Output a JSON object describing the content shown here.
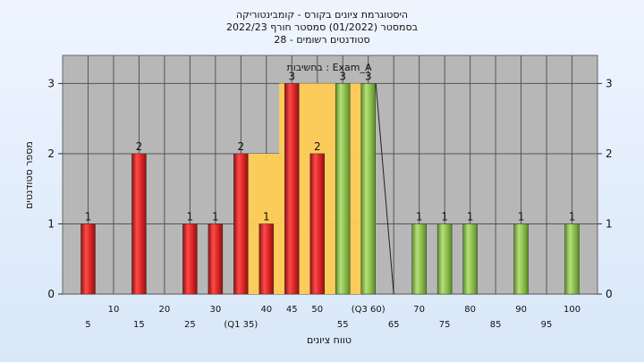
{
  "title_lines": [
    "היסטוגרמת ציונים בקורס - קומבינטוריקה",
    "בסמסטר  (01/2022)  סמסטר חורף 2022/23",
    "סטודנטים רשומים - 28"
  ],
  "chart_data": {
    "type": "bar",
    "legend_label": "בחשיבות : Exam_A",
    "xlabel": "טווח ציונים",
    "ylabel": "מספר סטודנטים",
    "ylim": [
      0,
      3.4
    ],
    "xlim": [
      0,
      105
    ],
    "y_ticks": [
      "0",
      "1",
      "2",
      "3"
    ],
    "x_tick_labels_upper": [
      "10",
      "20",
      "30",
      "40",
      "45",
      "50",
      "(Q3 60)",
      "70",
      "80",
      "90",
      "100"
    ],
    "x_tick_labels_lower": [
      "5",
      "15",
      "25",
      "(Q1 35)",
      "55",
      "65",
      "75",
      "85",
      "95"
    ],
    "x_ticks_upper_pos": [
      10,
      20,
      30,
      40,
      45,
      50,
      60,
      70,
      80,
      90,
      100
    ],
    "x_ticks_lower_pos": [
      5,
      15,
      25,
      35,
      55,
      65,
      75,
      85,
      95
    ],
    "bars": [
      {
        "x": 5,
        "value": 1,
        "color": "red",
        "label": "1"
      },
      {
        "x": 15,
        "value": 2,
        "color": "red",
        "label": "2"
      },
      {
        "x": 25,
        "value": 1,
        "color": "red",
        "label": "1"
      },
      {
        "x": 30,
        "value": 1,
        "color": "red",
        "label": "1"
      },
      {
        "x": 35,
        "value": 2,
        "color": "red",
        "label": "2"
      },
      {
        "x": 40,
        "value": 1,
        "color": "red",
        "label": "1"
      },
      {
        "x": 45,
        "value": 3,
        "color": "red",
        "label": "3"
      },
      {
        "x": 50,
        "value": 2,
        "color": "red",
        "label": "2"
      },
      {
        "x": 55,
        "value": 3,
        "color": "green",
        "label": "3"
      },
      {
        "x": 60,
        "value": 3,
        "color": "green",
        "label": "3"
      },
      {
        "x": 70,
        "value": 1,
        "color": "green",
        "label": "1"
      },
      {
        "x": 75,
        "value": 1,
        "color": "green",
        "label": "1"
      },
      {
        "x": 80,
        "value": 1,
        "color": "green",
        "label": "1"
      },
      {
        "x": 90,
        "value": 1,
        "color": "green",
        "label": "1"
      },
      {
        "x": 100,
        "value": 1,
        "color": "green",
        "label": "1"
      }
    ],
    "quartile_band": {
      "q1": 35,
      "q3": 60,
      "color": "#ffcc55"
    },
    "grid": true,
    "colors": {
      "plot_bg": "#b7b7b7",
      "red": "#e02a2a",
      "green": "#8cc04a",
      "band": "#ffcc55"
    }
  }
}
